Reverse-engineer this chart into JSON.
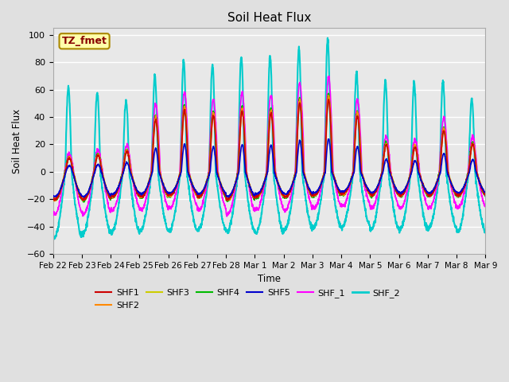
{
  "title": "Soil Heat Flux",
  "ylabel": "Soil Heat Flux",
  "xlabel": "Time",
  "ylim": [
    -60,
    105
  ],
  "yticks": [
    -60,
    -40,
    -20,
    0,
    20,
    40,
    60,
    80,
    100
  ],
  "background_color": "#e0e0e0",
  "plot_bg_color": "#e8e8e8",
  "grid_color": "white",
  "series": {
    "SHF1": {
      "color": "#cc0000",
      "lw": 1.2
    },
    "SHF2": {
      "color": "#ff8800",
      "lw": 1.2
    },
    "SHF3": {
      "color": "#cccc00",
      "lw": 1.2
    },
    "SHF4": {
      "color": "#00bb00",
      "lw": 1.2
    },
    "SHF5": {
      "color": "#0000cc",
      "lw": 1.2
    },
    "SHF_1": {
      "color": "#ff00ff",
      "lw": 1.2
    },
    "SHF_2": {
      "color": "#00cccc",
      "lw": 1.5
    }
  },
  "annotation_text": "TZ_fmet",
  "annotation_bg": "#ffffaa",
  "annotation_border": "#aa8800",
  "annotation_text_color": "#880000",
  "xtick_labels": [
    "Feb 22",
    "Feb 23",
    "Feb 24",
    "Feb 25",
    "Feb 26",
    "Feb 27",
    "Feb 28",
    "Mar 1",
    "Mar 2",
    "Mar 3",
    "Mar 4",
    "Mar 5",
    "Mar 6",
    "Mar 7",
    "Mar 8",
    "Mar 9"
  ],
  "n_days": 15,
  "pts_per_day": 144,
  "day_peak_amps_shf2": [
    62,
    58,
    52,
    70,
    81,
    78,
    84,
    85,
    90,
    97,
    73,
    66,
    65,
    66,
    53
  ],
  "day_trough_amps_shf2": [
    48,
    45,
    44,
    43,
    43,
    43,
    44,
    45,
    42,
    41,
    40,
    42,
    42,
    41,
    44
  ],
  "day_peak_amps_main": [
    10,
    12,
    15,
    38,
    45,
    41,
    44,
    43,
    50,
    53,
    41,
    20,
    18,
    30,
    20
  ],
  "day_trough_amps_main": [
    20,
    20,
    18,
    18,
    17,
    18,
    20,
    18,
    18,
    17,
    16,
    17,
    17,
    17,
    17
  ]
}
